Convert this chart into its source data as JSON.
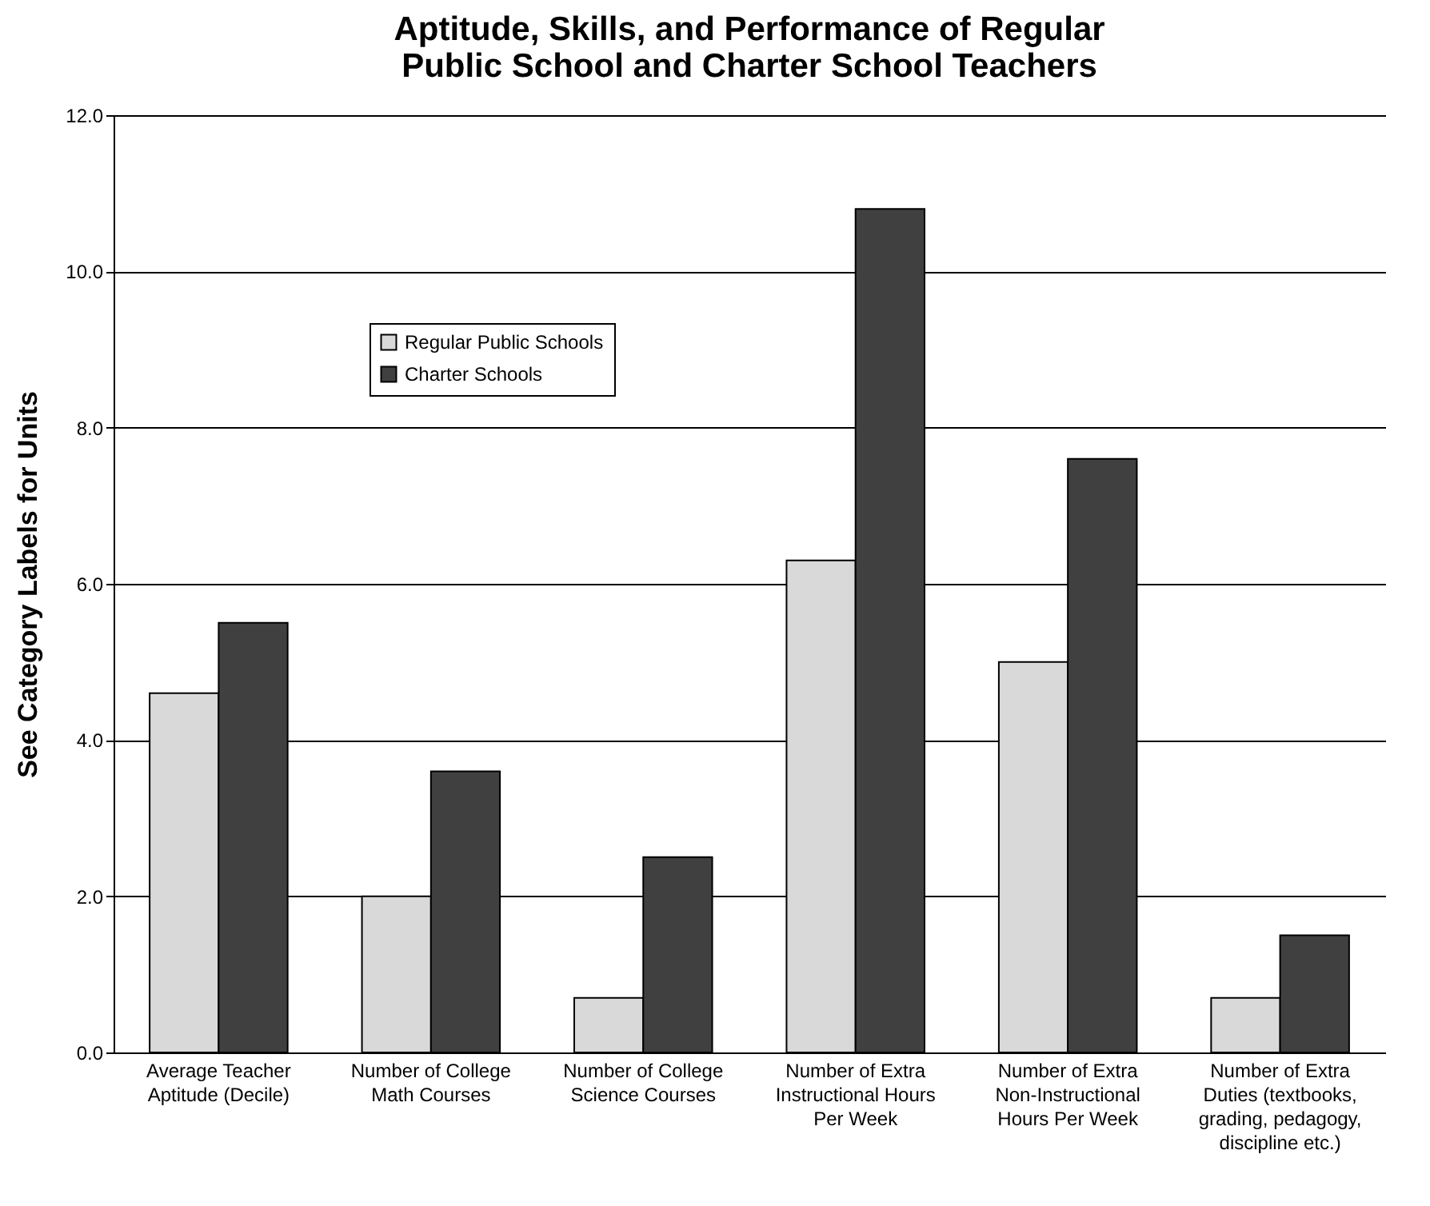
{
  "chart_data": {
    "type": "bar",
    "title": "Aptitude, Skills, and Performance of Regular Public School and Charter School Teachers",
    "ylabel": "See Category Labels for Units",
    "categories": [
      "Average Teacher Aptitude (Decile)",
      "Number of College Math Courses",
      "Number of College Science Courses",
      "Number of Extra Instructional Hours Per Week",
      "Number of Extra Non-Instructional Hours Per Week",
      "Number of Extra Duties (textbooks, grading, pedagogy, discipline etc.)"
    ],
    "series": [
      {
        "name": "Regular Public Schools",
        "color": "#d9d9d9",
        "values": [
          4.6,
          2.0,
          0.7,
          6.3,
          5.0,
          0.7
        ]
      },
      {
        "name": "Charter Schools",
        "color": "#404040",
        "values": [
          5.5,
          3.6,
          2.5,
          10.8,
          7.6,
          1.5
        ]
      }
    ],
    "ylim": [
      0,
      12
    ],
    "yticks": [
      {
        "value": 0,
        "label": "0.0"
      },
      {
        "value": 2,
        "label": "2.0"
      },
      {
        "value": 4,
        "label": "4.0"
      },
      {
        "value": 6,
        "label": "6.0"
      },
      {
        "value": 8,
        "label": "8.0"
      },
      {
        "value": 10,
        "label": "10.0"
      },
      {
        "value": 12,
        "label": "12.0"
      }
    ],
    "grid": "y",
    "legend": "top left"
  }
}
